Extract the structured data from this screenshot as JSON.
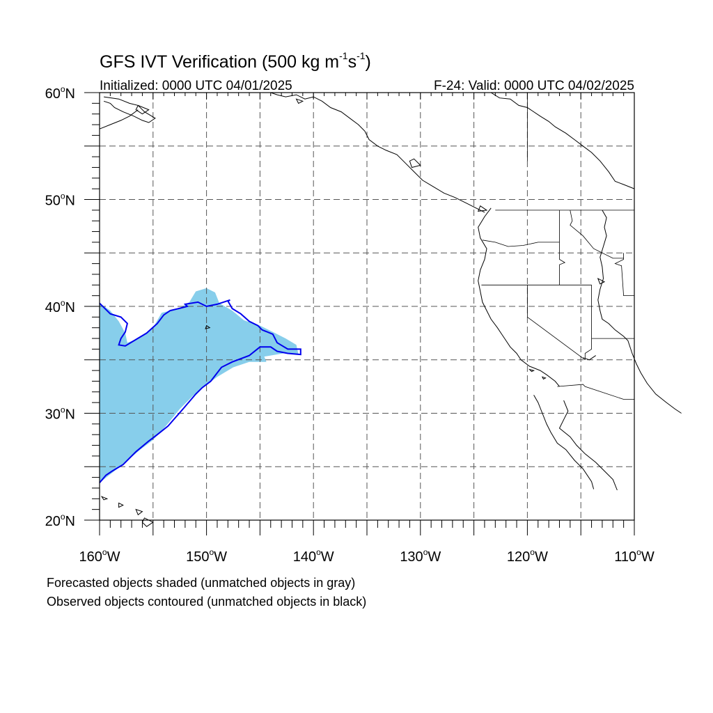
{
  "map": {
    "title_main": "GFS IVT Verification (500 kg m",
    "title_sup1": "-1",
    "title_mid": "s",
    "title_sup2": "-1",
    "title_end": ")",
    "init_label": "Initialized: 0000 UTC 04/01/2025",
    "valid_label": "F-24: Valid: 0000 UTC 04/02/2025",
    "footer_line1": "Forecasted objects shaded (unmatched objects in gray)",
    "footer_line2": "Observed objects contoured (unmatched objects in black)",
    "lat_labels": [
      {
        "value": 60,
        "text": "60",
        "hemi": "N"
      },
      {
        "value": 50,
        "text": "50",
        "hemi": "N"
      },
      {
        "value": 40,
        "text": "40",
        "hemi": "N"
      },
      {
        "value": 30,
        "text": "30",
        "hemi": "N"
      },
      {
        "value": 20,
        "text": "20",
        "hemi": "N"
      }
    ],
    "lon_labels": [
      {
        "value": -160,
        "text": "160",
        "hemi": "W"
      },
      {
        "value": -150,
        "text": "150",
        "hemi": "W"
      },
      {
        "value": -140,
        "text": "140",
        "hemi": "W"
      },
      {
        "value": -130,
        "text": "130",
        "hemi": "W"
      },
      {
        "value": -120,
        "text": "120",
        "hemi": "W"
      },
      {
        "value": -110,
        "text": "110",
        "hemi": "W"
      }
    ],
    "lon_range": [
      -160,
      -110
    ],
    "lat_range": [
      20,
      60
    ],
    "grid_interval_deg": 5,
    "colors": {
      "forecast_fill": "#87ceeb",
      "observed_contour": "#0000ee",
      "coast": "#000000",
      "grid": "#555555"
    },
    "forecast_object": [
      [
        -160,
        40.3
      ],
      [
        -159,
        39.6
      ],
      [
        -158.2,
        38.6
      ],
      [
        -157.6,
        37.5
      ],
      [
        -157.4,
        36.6
      ],
      [
        -156.4,
        37.0
      ],
      [
        -155.0,
        38.0
      ],
      [
        -154.2,
        39.4
      ],
      [
        -153.4,
        39.6
      ],
      [
        -152.6,
        39.8
      ],
      [
        -151.6,
        40.4
      ],
      [
        -151.0,
        41.4
      ],
      [
        -150.0,
        41.7
      ],
      [
        -149.2,
        41.3
      ],
      [
        -148.8,
        40.3
      ],
      [
        -147.6,
        39.6
      ],
      [
        -146.5,
        38.7
      ],
      [
        -145.0,
        38.2
      ],
      [
        -143.8,
        37.6
      ],
      [
        -142.6,
        37.0
      ],
      [
        -141.6,
        36.4
      ],
      [
        -141.4,
        35.5
      ],
      [
        -142.8,
        35.6
      ],
      [
        -144.6,
        35.3
      ],
      [
        -144.4,
        34.8
      ],
      [
        -146.0,
        34.8
      ],
      [
        -147.5,
        34.3
      ],
      [
        -149.0,
        33.4
      ],
      [
        -150.2,
        32.5
      ],
      [
        -151.3,
        31.6
      ],
      [
        -152.5,
        30.4
      ],
      [
        -153.8,
        28.8
      ],
      [
        -155.0,
        27.5
      ],
      [
        -156.2,
        26.6
      ],
      [
        -157.6,
        25.4
      ],
      [
        -158.6,
        24.6
      ],
      [
        -160,
        23.5
      ]
    ],
    "observed_contour": [
      [
        -160,
        40.3
      ],
      [
        -159.0,
        39.3
      ],
      [
        -158.0,
        39.0
      ],
      [
        -157.4,
        38.4
      ],
      [
        -157.6,
        37.6
      ],
      [
        -158.0,
        37.0
      ],
      [
        -158.2,
        36.4
      ],
      [
        -157.6,
        36.3
      ],
      [
        -156.6,
        36.9
      ],
      [
        -155.6,
        37.5
      ],
      [
        -154.6,
        38.4
      ],
      [
        -154.0,
        39.2
      ],
      [
        -153.4,
        39.6
      ],
      [
        -152.6,
        39.8
      ],
      [
        -151.8,
        40.0
      ],
      [
        -152.0,
        40.2
      ],
      [
        -150.8,
        40.4
      ],
      [
        -150.0,
        40.0
      ],
      [
        -149.0,
        40.2
      ],
      [
        -147.8,
        40.6
      ],
      [
        -148.0,
        40.5
      ],
      [
        -147.6,
        39.8
      ],
      [
        -146.8,
        39.3
      ],
      [
        -146.0,
        38.6
      ],
      [
        -145.2,
        38.2
      ],
      [
        -144.8,
        37.8
      ],
      [
        -143.8,
        37.4
      ],
      [
        -143.4,
        36.6
      ],
      [
        -142.4,
        36.0
      ],
      [
        -141.2,
        36.0
      ],
      [
        -141.2,
        35.5
      ],
      [
        -142.4,
        35.6
      ],
      [
        -143.4,
        35.8
      ],
      [
        -144.0,
        36.2
      ],
      [
        -145.0,
        36.2
      ],
      [
        -146.0,
        35.4
      ],
      [
        -147.6,
        34.8
      ],
      [
        -148.6,
        34.3
      ],
      [
        -149.6,
        33.0
      ],
      [
        -150.4,
        32.4
      ],
      [
        -151.0,
        31.8
      ],
      [
        -152.2,
        30.4
      ],
      [
        -153.6,
        28.8
      ],
      [
        -154.6,
        28.0
      ],
      [
        -155.4,
        27.4
      ],
      [
        -156.6,
        26.4
      ],
      [
        -157.8,
        25.2
      ],
      [
        -158.8,
        24.6
      ],
      [
        -159.4,
        24.2
      ],
      [
        -160,
        23.5
      ]
    ],
    "coastlines": [
      [
        [
          -123.4,
          60
        ],
        [
          -122.6,
          59.5
        ],
        [
          -121.6,
          59.4
        ],
        [
          -120.8,
          58.8
        ],
        [
          -120.0,
          58.6
        ],
        [
          -118.8,
          57.8
        ],
        [
          -118.0,
          57.3
        ],
        [
          -117.4,
          56.8
        ],
        [
          -116.4,
          56.2
        ],
        [
          -115.6,
          55.6
        ],
        [
          -114.8,
          55.0
        ],
        [
          -114.0,
          54.4
        ],
        [
          -113.2,
          53.6
        ],
        [
          -112.4,
          52.6
        ],
        [
          -111.8,
          51.7
        ],
        [
          -111.0,
          51.4
        ],
        [
          -110,
          51.0
        ]
      ],
      [
        [
          -113.0,
          49.0
        ],
        [
          -112.6,
          48.3
        ],
        [
          -112.8,
          47.4
        ],
        [
          -112.6,
          46.6
        ],
        [
          -112.9,
          45.6
        ],
        [
          -113.2,
          44.6
        ],
        [
          -113.0,
          43.7
        ],
        [
          -112.9,
          42.6
        ],
        [
          -113.2,
          41.6
        ],
        [
          -113.4,
          40.6
        ],
        [
          -113.2,
          39.6
        ],
        [
          -113.0,
          38.8
        ],
        [
          -112.4,
          38.4
        ],
        [
          -111.8,
          37.8
        ],
        [
          -111.0,
          37.2
        ],
        [
          -110.6,
          36.8
        ],
        [
          -110.2,
          35.6
        ],
        [
          -109.8,
          34.6
        ],
        [
          -109.4,
          33.8
        ],
        [
          -108.8,
          32.8
        ],
        [
          -108.0,
          31.8
        ],
        [
          -107.0,
          31.0
        ],
        [
          -106.2,
          30.4
        ],
        [
          -105.6,
          30.0
        ]
      ],
      [
        [
          -119.4,
          31.7
        ],
        [
          -119.0,
          31.0
        ],
        [
          -118.6,
          30.0
        ],
        [
          -118.2,
          29.0
        ],
        [
          -117.8,
          28.2
        ],
        [
          -117.2,
          27.2
        ],
        [
          -116.4,
          26.6
        ],
        [
          -115.6,
          25.6
        ],
        [
          -114.8,
          24.8
        ],
        [
          -114.0,
          23.6
        ],
        [
          -113.8,
          22.9
        ]
      ],
      [
        [
          -116.6,
          31.2
        ],
        [
          -116.2,
          30.2
        ],
        [
          -116.6,
          29.4
        ],
        [
          -117.0,
          28.6
        ],
        [
          -116.0,
          27.8
        ],
        [
          -115.4,
          27.0
        ],
        [
          -114.6,
          26.2
        ],
        [
          -113.6,
          25.4
        ],
        [
          -112.8,
          24.6
        ],
        [
          -112.0,
          23.8
        ],
        [
          -111.6,
          22.8
        ]
      ],
      [
        [
          -123.4,
          49.2
        ],
        [
          -124.0,
          48.4
        ],
        [
          -124.6,
          47.4
        ],
        [
          -124.4,
          46.4
        ],
        [
          -123.8,
          45.4
        ],
        [
          -124.0,
          44.4
        ],
        [
          -124.4,
          43.4
        ],
        [
          -124.6,
          42.4
        ],
        [
          -124.4,
          41.4
        ],
        [
          -124.2,
          40.4
        ],
        [
          -123.8,
          39.6
        ],
        [
          -123.4,
          38.8
        ],
        [
          -122.8,
          38.0
        ],
        [
          -122.4,
          37.4
        ],
        [
          -122.0,
          36.8
        ],
        [
          -121.6,
          36.2
        ],
        [
          -121.0,
          35.6
        ],
        [
          -120.6,
          35.0
        ],
        [
          -119.8,
          34.4
        ],
        [
          -118.8,
          34.0
        ],
        [
          -118.2,
          33.6
        ],
        [
          -117.4,
          33.0
        ],
        [
          -117.0,
          32.5
        ]
      ],
      [
        [
          -144.0,
          60
        ],
        [
          -143.4,
          59.8
        ],
        [
          -142.6,
          59.6
        ],
        [
          -141.6,
          59.8
        ],
        [
          -140.8,
          59.4
        ],
        [
          -140.0,
          59.6
        ],
        [
          -139.2,
          59.2
        ],
        [
          -138.4,
          58.6
        ],
        [
          -137.4,
          58.2
        ],
        [
          -136.6,
          57.6
        ],
        [
          -135.8,
          57.0
        ],
        [
          -135.2,
          56.4
        ],
        [
          -134.8,
          55.6
        ],
        [
          -134.0,
          55.0
        ],
        [
          -133.2,
          54.6
        ],
        [
          -132.2,
          54.2
        ],
        [
          -131.4,
          53.4
        ],
        [
          -130.6,
          52.6
        ],
        [
          -129.8,
          51.8
        ],
        [
          -128.8,
          51.2
        ],
        [
          -127.8,
          50.6
        ],
        [
          -126.8,
          50.2
        ],
        [
          -125.6,
          49.6
        ],
        [
          -124.8,
          49.2
        ],
        [
          -124.0,
          48.8
        ]
      ],
      [
        [
          -159.6,
          59.2
        ],
        [
          -159.0,
          59.0
        ],
        [
          -158.6,
          58.6
        ],
        [
          -157.8,
          58.2
        ],
        [
          -156.8,
          57.8
        ],
        [
          -156.0,
          57.4
        ],
        [
          -155.4,
          57.2
        ],
        [
          -154.8,
          57.6
        ],
        [
          -155.8,
          58.2
        ],
        [
          -156.4,
          58.8
        ],
        [
          -157.2,
          59.0
        ],
        [
          -158.2,
          59.4
        ],
        [
          -159.6,
          59.6
        ]
      ],
      [
        [
          -160,
          56.6
        ],
        [
          -159.0,
          57.0
        ],
        [
          -158.0,
          57.4
        ],
        [
          -157.2,
          57.8
        ],
        [
          -156.4,
          58.4
        ]
      ],
      [
        [
          -114.8,
          35.2
        ],
        [
          -114.2,
          35.0
        ],
        [
          -113.6,
          35.4
        ]
      ]
    ],
    "islands": [
      [
        [
          -155.8,
          20.2
        ],
        [
          -155.0,
          19.8
        ],
        [
          -155.6,
          19.4
        ],
        [
          -156.0,
          19.8
        ],
        [
          -155.8,
          20.2
        ]
      ],
      [
        [
          -156.6,
          21.0
        ],
        [
          -156.0,
          20.8
        ],
        [
          -156.4,
          20.5
        ],
        [
          -156.6,
          21.0
        ]
      ],
      [
        [
          -158.2,
          21.6
        ],
        [
          -157.8,
          21.4
        ],
        [
          -158.2,
          21.2
        ],
        [
          -158.2,
          21.6
        ]
      ],
      [
        [
          -159.8,
          22.2
        ],
        [
          -159.3,
          22.0
        ],
        [
          -159.6,
          21.9
        ],
        [
          -159.8,
          22.2
        ]
      ],
      [
        [
          -150.0,
          38.2
        ],
        [
          -149.7,
          38.0
        ],
        [
          -150.1,
          37.9
        ],
        [
          -150.0,
          38.2
        ]
      ],
      [
        [
          -119.8,
          34.1
        ],
        [
          -119.4,
          34.0
        ],
        [
          -119.6,
          33.9
        ],
        [
          -119.8,
          34.1
        ]
      ],
      [
        [
          -118.6,
          33.4
        ],
        [
          -118.3,
          33.3
        ],
        [
          -118.5,
          33.2
        ],
        [
          -118.6,
          33.4
        ]
      ],
      [
        [
          -113.4,
          42.6
        ],
        [
          -112.8,
          42.3
        ],
        [
          -113.2,
          42.1
        ],
        [
          -113.4,
          42.6
        ]
      ],
      [
        [
          -124.4,
          49.4
        ],
        [
          -123.8,
          49.0
        ],
        [
          -124.6,
          48.9
        ],
        [
          -124.4,
          49.4
        ]
      ],
      [
        [
          -130.6,
          53.8
        ],
        [
          -130.0,
          53.2
        ],
        [
          -130.8,
          53.0
        ],
        [
          -131.0,
          53.6
        ],
        [
          -130.6,
          53.8
        ]
      ],
      [
        [
          -156.4,
          58.8
        ],
        [
          -155.4,
          58.4
        ],
        [
          -156.0,
          58.0
        ],
        [
          -156.6,
          58.4
        ],
        [
          -156.4,
          58.8
        ]
      ],
      [
        [
          -141.6,
          59.4
        ],
        [
          -141.0,
          59.2
        ],
        [
          -141.4,
          59.0
        ],
        [
          -141.6,
          59.4
        ]
      ]
    ],
    "borders": [
      [
        [
          -123.0,
          49
        ],
        [
          -110,
          49
        ]
      ],
      [
        [
          -120,
          60
        ],
        [
          -120,
          53.6
        ]
      ],
      [
        [
          -124.2,
          46.2
        ],
        [
          -123.0,
          46.0
        ],
        [
          -121.8,
          45.6
        ],
        [
          -120.4,
          45.7
        ],
        [
          -119.0,
          46.0
        ],
        [
          -117.0,
          46.0
        ]
      ],
      [
        [
          -117.0,
          49
        ],
        [
          -117.0,
          44.4
        ],
        [
          -116.5,
          44.1
        ],
        [
          -117.0,
          43.9
        ],
        [
          -117.0,
          42
        ]
      ],
      [
        [
          -124.3,
          42
        ],
        [
          -114.0,
          42
        ]
      ],
      [
        [
          -120,
          42
        ],
        [
          -120,
          39
        ],
        [
          -114.6,
          35.0
        ]
      ],
      [
        [
          -114.0,
          42
        ],
        [
          -114.0,
          36.0
        ],
        [
          -114.6,
          35.6
        ],
        [
          -114.6,
          35.0
        ]
      ],
      [
        [
          -111.0,
          45
        ],
        [
          -111.0,
          44.4
        ],
        [
          -111.8,
          44.0
        ],
        [
          -111.2,
          43.8
        ],
        [
          -111.0,
          41
        ],
        [
          -110,
          41
        ]
      ],
      [
        [
          -116.0,
          49
        ],
        [
          -115.8,
          48.0
        ],
        [
          -116.0,
          47.6
        ],
        [
          -114.8,
          46.6
        ],
        [
          -113.8,
          45.4
        ],
        [
          -112.0,
          44.5
        ],
        [
          -111.0,
          44.5
        ]
      ],
      [
        [
          -117.2,
          32.5
        ],
        [
          -114.8,
          32.7
        ],
        [
          -114.6,
          32.5
        ],
        [
          -111.0,
          31.3
        ],
        [
          -110,
          31.3
        ]
      ],
      [
        [
          -114.0,
          37.0
        ],
        [
          -110,
          37.0
        ]
      ]
    ]
  }
}
